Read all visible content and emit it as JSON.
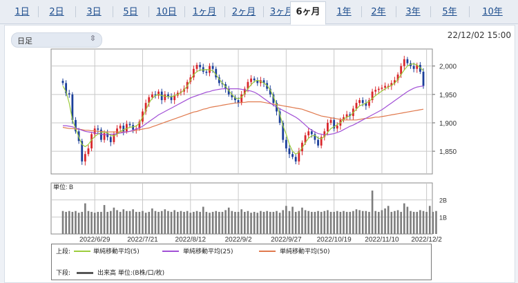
{
  "tabs": [
    {
      "label": "1日",
      "active": false
    },
    {
      "label": "2日",
      "active": false
    },
    {
      "label": "3日",
      "active": false
    },
    {
      "label": "5日",
      "active": false
    },
    {
      "label": "10日",
      "active": false
    },
    {
      "label": "1ヶ月",
      "active": false
    },
    {
      "label": "2ヶ月",
      "active": false
    },
    {
      "label": "3ヶ月",
      "active": false
    },
    {
      "label": "6ヶ月",
      "active": true
    },
    {
      "label": "1年",
      "active": false
    },
    {
      "label": "2年",
      "active": false
    },
    {
      "label": "3年",
      "active": false
    },
    {
      "label": "5年",
      "active": false
    },
    {
      "label": "10年",
      "active": false
    }
  ],
  "controls": {
    "period_select": "日足",
    "timestamp": "22/12/02 15:00"
  },
  "volume_unit_label": "単位: B",
  "legend": {
    "upper_label": "上段:",
    "lower_label": "下段:",
    "ma5": "単純移動平均(5)",
    "ma25": "単純移動平均(25)",
    "ma50": "単純移動平均(50)",
    "volume": "出来高 単位:(B株/口/枚)"
  },
  "colors": {
    "up": "#d9262b",
    "down": "#1b3f9a",
    "ma5": "#9ccc3c",
    "ma25": "#a14fd6",
    "ma50": "#e0794d",
    "volume": "#7c7c7c",
    "grid": "#c8c8c8"
  },
  "chart_data": [
    {
      "type": "candlestick",
      "ylim": [
        1810,
        2030
      ],
      "yticks": [
        1850,
        1900,
        1950,
        2000
      ],
      "ytick_labels": [
        "1,850",
        "1,900",
        "1,950",
        "2,000"
      ],
      "x_labels": [
        "2022/6/29",
        "2022/7/21",
        "2022/8/12",
        "2022/9/2",
        "2022/9/27",
        "2022/10/19",
        "2022/11/10",
        "2022/12/2"
      ],
      "x_label_index": [
        10,
        25,
        40,
        55,
        70,
        85,
        100,
        114
      ],
      "close": [
        1970,
        1952,
        1950,
        1905,
        1885,
        1868,
        1832,
        1845,
        1855,
        1880,
        1890,
        1888,
        1870,
        1882,
        1875,
        1866,
        1880,
        1890,
        1895,
        1885,
        1898,
        1896,
        1888,
        1890,
        1902,
        1920,
        1935,
        1945,
        1950,
        1948,
        1955,
        1940,
        1950,
        1947,
        1940,
        1948,
        1953,
        1955,
        1960,
        1972,
        1980,
        1995,
        2002,
        1998,
        1990,
        1988,
        2000,
        1995,
        1980,
        1970,
        1968,
        1960,
        1950,
        1945,
        1940,
        1935,
        1950,
        1960,
        1972,
        1978,
        1975,
        1970,
        1975,
        1970,
        1960,
        1950,
        1935,
        1920,
        1900,
        1870,
        1855,
        1845,
        1840,
        1832,
        1850,
        1865,
        1878,
        1885,
        1880,
        1870,
        1860,
        1875,
        1885,
        1900,
        1905,
        1890,
        1895,
        1905,
        1910,
        1915,
        1912,
        1925,
        1935,
        1940,
        1935,
        1930,
        1940,
        1955,
        1958,
        1960,
        1962,
        1965,
        1965,
        1970,
        1975,
        1985,
        2000,
        2012,
        2005,
        2000,
        1995,
        2002,
        1990,
        1965
      ],
      "ma5": [
        1965,
        1955,
        1935,
        1905,
        1890,
        1875,
        1862,
        1858,
        1862,
        1870,
        1876,
        1880,
        1883,
        1884,
        1882,
        1878,
        1877,
        1880,
        1885,
        1888,
        1890,
        1892,
        1893,
        1894,
        1900,
        1910,
        1922,
        1935,
        1943,
        1948,
        1950,
        1948,
        1947,
        1946,
        1946,
        1948,
        1950,
        1953,
        1958,
        1965,
        1975,
        1985,
        1990,
        1993,
        1993,
        1994,
        1993,
        1992,
        1985,
        1977,
        1970,
        1964,
        1957,
        1950,
        1944,
        1942,
        1945,
        1952,
        1960,
        1967,
        1973,
        1975,
        1973,
        1970,
        1966,
        1958,
        1946,
        1932,
        1915,
        1895,
        1880,
        1862,
        1850,
        1845,
        1848,
        1856,
        1865,
        1873,
        1877,
        1878,
        1873,
        1872,
        1876,
        1883,
        1890,
        1893,
        1897,
        1900,
        1906,
        1910,
        1912,
        1918,
        1924,
        1930,
        1932,
        1935,
        1938,
        1943,
        1948,
        1952,
        1956,
        1960,
        1963,
        1966,
        1970,
        1976,
        1985,
        1993,
        2000,
        2003,
        2004,
        2002,
        1997,
        1992
      ],
      "ma25": [
        1895,
        1895,
        1894,
        1893,
        1891,
        1889,
        1887,
        1885,
        1884,
        1883,
        1882,
        1881,
        1880,
        1879,
        1879,
        1880,
        1880,
        1881,
        1882,
        1883,
        1884,
        1885,
        1887,
        1889,
        1891,
        1894,
        1898,
        1902,
        1906,
        1910,
        1914,
        1917,
        1920,
        1923,
        1926,
        1929,
        1932,
        1935,
        1938,
        1941,
        1944,
        1946,
        1948,
        1950,
        1952,
        1954,
        1955,
        1957,
        1958,
        1959,
        1960,
        1960,
        1960,
        1960,
        1960,
        1960,
        1959,
        1958,
        1957,
        1956,
        1954,
        1951,
        1947,
        1943,
        1939,
        1935,
        1931,
        1928,
        1925,
        1922,
        1919,
        1916,
        1913,
        1910,
        1906,
        1901,
        1896,
        1891,
        1887,
        1884,
        1881,
        1880,
        1879,
        1879,
        1880,
        1881,
        1883,
        1885,
        1888,
        1891,
        1894,
        1896,
        1899,
        1902,
        1905,
        1908,
        1911,
        1914,
        1917,
        1920,
        1923,
        1927,
        1931,
        1935,
        1939,
        1943,
        1947,
        1951,
        1955,
        1958,
        1961,
        1963,
        1964,
        1965
      ],
      "ma50": [
        1892,
        1891,
        1890,
        1890,
        1889,
        1889,
        1888,
        1887,
        1887,
        1886,
        1886,
        1885,
        1885,
        1884,
        1884,
        1884,
        1884,
        1884,
        1884,
        1884,
        1884,
        1885,
        1886,
        1887,
        1888,
        1889,
        1890,
        1891,
        1893,
        1895,
        1897,
        1899,
        1901,
        1903,
        1905,
        1907,
        1909,
        1911,
        1913,
        1915,
        1917,
        1919,
        1920,
        1922,
        1924,
        1925,
        1927,
        1928,
        1929,
        1930,
        1931,
        1932,
        1933,
        1934,
        1935,
        1935,
        1936,
        1936,
        1937,
        1937,
        1937,
        1937,
        1937,
        1936,
        1935,
        1934,
        1933,
        1932,
        1931,
        1930,
        1929,
        1928,
        1927,
        1926,
        1925,
        1924,
        1922,
        1920,
        1918,
        1916,
        1914,
        1912,
        1911,
        1910,
        1909,
        1908,
        1907,
        1906,
        1905,
        1905,
        1905,
        1905,
        1905,
        1906,
        1907,
        1908,
        1908,
        1909,
        1910,
        1910,
        1911,
        1912,
        1913,
        1914,
        1915,
        1916,
        1917,
        1918,
        1919,
        1920,
        1921,
        1922,
        1923,
        1924
      ]
    },
    {
      "type": "bar",
      "ylim": [
        0,
        3
      ],
      "yticks": [
        1,
        2
      ],
      "ytick_labels": [
        "1B",
        "2B"
      ],
      "unit": "B",
      "values": [
        1.35,
        1.3,
        1.35,
        1.3,
        1.35,
        1.25,
        1.3,
        1.8,
        1.35,
        1.3,
        1.25,
        1.3,
        1.3,
        1.7,
        1.3,
        1.35,
        1.55,
        1.4,
        1.3,
        1.45,
        1.35,
        1.35,
        1.45,
        1.3,
        1.3,
        1.35,
        1.25,
        1.3,
        1.5,
        1.35,
        1.3,
        1.35,
        1.45,
        1.35,
        1.3,
        1.4,
        1.3,
        1.35,
        1.3,
        1.35,
        1.25,
        1.3,
        1.35,
        1.3,
        1.6,
        1.3,
        1.25,
        1.3,
        1.35,
        1.3,
        1.3,
        1.4,
        1.55,
        1.35,
        1.3,
        1.3,
        1.45,
        1.3,
        1.35,
        1.25,
        1.3,
        1.25,
        1.35,
        1.3,
        1.35,
        1.3,
        1.3,
        1.35,
        1.25,
        1.4,
        1.65,
        1.35,
        1.6,
        1.3,
        1.35,
        1.55,
        1.4,
        1.35,
        1.3,
        1.3,
        1.35,
        1.3,
        1.35,
        1.4,
        1.3,
        1.3,
        1.35,
        1.3,
        1.35,
        1.3,
        1.3,
        1.35,
        1.45,
        1.4,
        1.35,
        1.35,
        1.3,
        2.55,
        1.35,
        1.3,
        1.4,
        1.5,
        1.65,
        1.3,
        1.35,
        1.4,
        1.3,
        1.8,
        1.6,
        1.35,
        1.3,
        1.3,
        1.4,
        1.35,
        1.3,
        1.65,
        1.3,
        1.35
      ]
    }
  ]
}
